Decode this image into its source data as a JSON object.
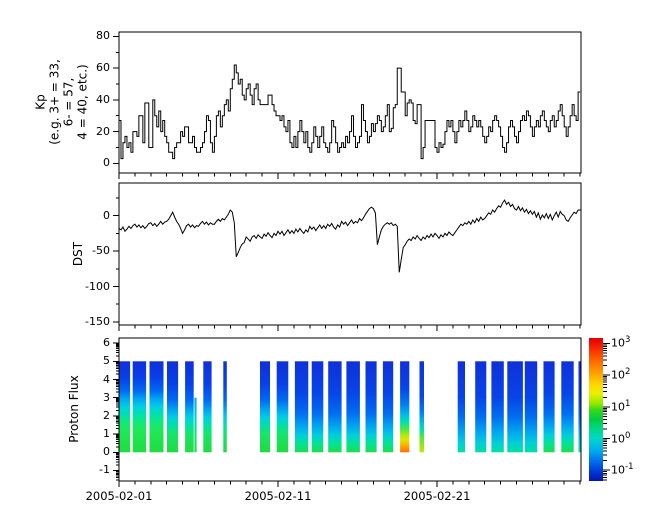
{
  "figure": {
    "background": "#ffffff",
    "line_color": "#000000",
    "x_axis": {
      "major_ticks": [
        {
          "day": 0,
          "label": "2005-02-01"
        },
        {
          "day": 10,
          "label": "2005-02-11"
        },
        {
          "day": 20,
          "label": "2005-02-21"
        }
      ],
      "minor_step_days": 1,
      "span_days": [
        0,
        29.06
      ]
    }
  },
  "chart_data": [
    {
      "id": "kp",
      "type": "line",
      "step": true,
      "ylabel": "Kp\n(e.g. 3+ = 33,\n6- = 57,\n4 = 40, etc.)",
      "ylim": [
        -6.1,
        82.8
      ],
      "yticks": [
        0,
        20,
        40,
        60,
        80
      ],
      "y_minor_step": 10,
      "x_start_day": 0,
      "x_step_days": 0.125,
      "values": [
        27,
        3,
        13,
        17,
        10,
        13,
        7,
        20,
        20,
        17,
        30,
        30,
        13,
        38,
        38,
        10,
        10,
        40,
        30,
        23,
        33,
        20,
        27,
        17,
        13,
        7,
        7,
        3,
        10,
        13,
        13,
        20,
        17,
        23,
        23,
        13,
        13,
        17,
        10,
        7,
        7,
        10,
        13,
        20,
        30,
        27,
        13,
        7,
        17,
        30,
        33,
        23,
        30,
        37,
        40,
        33,
        47,
        53,
        62,
        57,
        50,
        53,
        43,
        40,
        47,
        50,
        43,
        37,
        47,
        50,
        40,
        37,
        37,
        37,
        37,
        43,
        43,
        37,
        33,
        30,
        30,
        27,
        30,
        23,
        20,
        27,
        13,
        10,
        17,
        10,
        20,
        27,
        20,
        13,
        20,
        10,
        7,
        13,
        23,
        17,
        10,
        17,
        23,
        13,
        10,
        7,
        13,
        27,
        23,
        13,
        7,
        10,
        13,
        10,
        17,
        13,
        20,
        30,
        17,
        10,
        13,
        17,
        37,
        27,
        20,
        13,
        17,
        25,
        20,
        25,
        30,
        27,
        20,
        23,
        30,
        37,
        20,
        22,
        35,
        37,
        60,
        60,
        45,
        45,
        30,
        38,
        40,
        38,
        27,
        25,
        37,
        37,
        3,
        10,
        27,
        27,
        27,
        27,
        27,
        10,
        7,
        13,
        10,
        12,
        20,
        27,
        23,
        27,
        20,
        13,
        20,
        27,
        23,
        27,
        33,
        27,
        20,
        23,
        30,
        27,
        23,
        27,
        23,
        17,
        13,
        17,
        23,
        20,
        27,
        30,
        27,
        23,
        17,
        10,
        7,
        13,
        23,
        27,
        23,
        17,
        13,
        20,
        27,
        30,
        27,
        33,
        30,
        23,
        17,
        23,
        27,
        23,
        30,
        33,
        27,
        23,
        20,
        27,
        30,
        23,
        27,
        33,
        37,
        30,
        23,
        17,
        23,
        30,
        37,
        30,
        27,
        45
      ]
    },
    {
      "id": "dst",
      "type": "line",
      "step": false,
      "ylabel": "DST",
      "ylim": [
        -154.4,
        46.2
      ],
      "yticks": [
        0,
        -50,
        -100,
        -150
      ],
      "y_minor_step": 25,
      "x_start_day": 0,
      "x_step_days": 0.125,
      "values": [
        -18,
        -20,
        -16,
        -22,
        -19,
        -15,
        -18,
        -14,
        -12,
        -16,
        -13,
        -17,
        -14,
        -18,
        -15,
        -11,
        -10,
        -14,
        -11,
        -15,
        -12,
        -8,
        -12,
        -9,
        -8,
        -5,
        0,
        5,
        -2,
        -8,
        -12,
        -18,
        -25,
        -20,
        -14,
        -12,
        -16,
        -13,
        -17,
        -14,
        -15,
        -11,
        -8,
        -12,
        -9,
        -13,
        -10,
        -12,
        -12,
        -8,
        -5,
        -8,
        -4,
        -6,
        -2,
        2,
        8,
        5,
        -10,
        -58,
        -52,
        -45,
        -40,
        -38,
        -30,
        -33,
        -36,
        -30,
        -28,
        -32,
        -27,
        -30,
        -32,
        -26,
        -29,
        -24,
        -28,
        -31,
        -25,
        -28,
        -22,
        -26,
        -22,
        -28,
        -24,
        -20,
        -25,
        -21,
        -25,
        -19,
        -23,
        -18,
        -22,
        -25,
        -20,
        -23,
        -15,
        -19,
        -16,
        -21,
        -17,
        -13,
        -18,
        -14,
        -18,
        -12,
        -15,
        -11,
        -16,
        -19,
        -13,
        -16,
        -8,
        -12,
        -9,
        -14,
        -10,
        -6,
        -11,
        -8,
        -10,
        -4,
        -7,
        -3,
        2,
        6,
        10,
        12,
        10,
        4,
        -41,
        -30,
        -20,
        -15,
        -12,
        -10,
        -12,
        -10,
        -14,
        -12,
        -15,
        -80,
        -62,
        -45,
        -41,
        -36,
        -33,
        -35,
        -30,
        -33,
        -28,
        -32,
        -35,
        -30,
        -33,
        -28,
        -31,
        -26,
        -30,
        -25,
        -28,
        -32,
        -27,
        -30,
        -25,
        -28,
        -23,
        -26,
        -28,
        -24,
        -20,
        -16,
        -12,
        -14,
        -10,
        -12,
        -8,
        -12,
        -6,
        -10,
        -4,
        -8,
        -2,
        -6,
        -4,
        0,
        4,
        2,
        8,
        5,
        10,
        14,
        12,
        18,
        22,
        16,
        19,
        13,
        16,
        10,
        8,
        13,
        7,
        11,
        5,
        9,
        3,
        7,
        2,
        6,
        -2,
        4,
        -5,
        1,
        -3,
        3,
        -4,
        2,
        -6,
        0,
        5,
        -2,
        6,
        2,
        0,
        -6,
        -8,
        -3,
        1,
        5,
        3,
        8
      ]
    },
    {
      "id": "proton_flux",
      "type": "heatmap",
      "ylabel": "Proton Flux",
      "ylim": [
        -1.58,
        6.28
      ],
      "yticks": [
        6,
        5,
        4,
        3,
        2,
        1,
        0,
        -1
      ],
      "y_minor": "log",
      "bar_value_range": [
        0,
        5
      ],
      "bars": [
        {
          "d0": 0.02,
          "d1": 0.7,
          "g": "A",
          "vtop": 5
        },
        {
          "d0": 0.86,
          "d1": 1.7,
          "g": "A",
          "vtop": 5
        },
        {
          "d0": 1.92,
          "d1": 2.8,
          "g": "A",
          "vtop": 5
        },
        {
          "d0": 3.02,
          "d1": 3.72,
          "g": "B",
          "vtop": 5
        },
        {
          "d0": 4.16,
          "d1": 4.7,
          "g": "B",
          "vtop": 5
        },
        {
          "d0": 4.74,
          "d1": 4.88,
          "g": "B2",
          "vtop": 3
        },
        {
          "d0": 5.3,
          "d1": 5.82,
          "g": "B",
          "vtop": 5
        },
        {
          "d0": 6.56,
          "d1": 6.78,
          "g": "B",
          "vtop": 5
        },
        {
          "d0": 8.87,
          "d1": 9.5,
          "g": "B",
          "vtop": 5
        },
        {
          "d0": 9.92,
          "d1": 10.65,
          "g": "B",
          "vtop": 5
        },
        {
          "d0": 11.06,
          "d1": 11.9,
          "g": "D",
          "vtop": 5
        },
        {
          "d0": 12.12,
          "d1": 12.85,
          "g": "D",
          "vtop": 5
        },
        {
          "d0": 13.16,
          "d1": 14.0,
          "g": "D",
          "vtop": 5
        },
        {
          "d0": 14.3,
          "d1": 15.15,
          "g": "D",
          "vtop": 5
        },
        {
          "d0": 15.5,
          "d1": 16.2,
          "g": "D",
          "vtop": 5
        },
        {
          "d0": 16.6,
          "d1": 17.25,
          "g": "D",
          "vtop": 5
        },
        {
          "d0": 17.68,
          "d1": 18.26,
          "g": "O",
          "vtop": 5
        },
        {
          "d0": 18.9,
          "d1": 19.18,
          "g": "Y",
          "vtop": 5
        },
        {
          "d0": 21.3,
          "d1": 21.76,
          "g": "C",
          "vtop": 5
        },
        {
          "d0": 22.4,
          "d1": 23.1,
          "g": "C",
          "vtop": 5
        },
        {
          "d0": 23.42,
          "d1": 24.2,
          "g": "C",
          "vtop": 5
        },
        {
          "d0": 24.42,
          "d1": 25.4,
          "g": "C",
          "vtop": 5
        },
        {
          "d0": 25.52,
          "d1": 26.3,
          "g": "C",
          "vtop": 5
        },
        {
          "d0": 26.7,
          "d1": 27.4,
          "g": "D",
          "vtop": 5
        },
        {
          "d0": 27.82,
          "d1": 28.6,
          "g": "D",
          "vtop": 5
        },
        {
          "d0": 28.9,
          "d1": 29.06,
          "g": "C",
          "vtop": 5
        }
      ],
      "gradients": {
        "A": [
          [
            0,
            "#1030d8"
          ],
          [
            18,
            "#0840e8"
          ],
          [
            32,
            "#0068f0"
          ],
          [
            42,
            "#00a8f0"
          ],
          [
            50,
            "#00d0e0"
          ],
          [
            58,
            "#00e0b0"
          ],
          [
            66,
            "#10e880"
          ],
          [
            76,
            "#20e858"
          ],
          [
            100,
            "#20dc40"
          ]
        ],
        "B": [
          [
            0,
            "#1030d8"
          ],
          [
            25,
            "#0840e8"
          ],
          [
            42,
            "#0068f0"
          ],
          [
            54,
            "#00a8f0"
          ],
          [
            62,
            "#00d0e0"
          ],
          [
            70,
            "#00e0a8"
          ],
          [
            80,
            "#18e468"
          ],
          [
            100,
            "#20dc40"
          ]
        ],
        "B2": [
          [
            0,
            "#00a8f0"
          ],
          [
            40,
            "#00d8c8"
          ],
          [
            70,
            "#10e478"
          ],
          [
            100,
            "#20dc40"
          ]
        ],
        "C": [
          [
            0,
            "#1030d8"
          ],
          [
            40,
            "#0645e8"
          ],
          [
            62,
            "#0070f0"
          ],
          [
            78,
            "#00a8f0"
          ],
          [
            90,
            "#00d0d8"
          ],
          [
            100,
            "#00e0a0"
          ]
        ],
        "D": [
          [
            0,
            "#1030d8"
          ],
          [
            35,
            "#0645e8"
          ],
          [
            58,
            "#0070f0"
          ],
          [
            72,
            "#00a8f0"
          ],
          [
            82,
            "#00d0d8"
          ],
          [
            90,
            "#00e498"
          ],
          [
            100,
            "#20dc50"
          ]
        ],
        "O": [
          [
            0,
            "#1030d8"
          ],
          [
            30,
            "#0645e8"
          ],
          [
            48,
            "#0080f0"
          ],
          [
            58,
            "#00b8e8"
          ],
          [
            66,
            "#00e0b0"
          ],
          [
            74,
            "#40e850"
          ],
          [
            80,
            "#a0e818"
          ],
          [
            86,
            "#e0e800"
          ],
          [
            92,
            "#ffb000"
          ],
          [
            100,
            "#ff7000"
          ]
        ],
        "Y": [
          [
            0,
            "#1030d8"
          ],
          [
            38,
            "#0645e8"
          ],
          [
            56,
            "#0080f0"
          ],
          [
            68,
            "#00c0e0"
          ],
          [
            76,
            "#00e49c"
          ],
          [
            84,
            "#60e830"
          ],
          [
            100,
            "#c0e800"
          ]
        ]
      },
      "colorbar": {
        "exponents": [
          3,
          2,
          1,
          0,
          -1
        ],
        "e_top": 3.17,
        "e_bottom": -1.34,
        "stops": [
          [
            0,
            "#e00000"
          ],
          [
            3.8,
            "#f01000"
          ],
          [
            14.9,
            "#ff6000"
          ],
          [
            25.9,
            "#ffa800"
          ],
          [
            32.6,
            "#ffd800"
          ],
          [
            39.2,
            "#e8f000"
          ],
          [
            45.9,
            "#90e800"
          ],
          [
            50.3,
            "#38d818"
          ],
          [
            57,
            "#00cc44"
          ],
          [
            63.6,
            "#00d888"
          ],
          [
            70.3,
            "#00d8c8"
          ],
          [
            79.2,
            "#00a8f0"
          ],
          [
            88,
            "#0060e8"
          ],
          [
            94.7,
            "#0030d0"
          ],
          [
            100,
            "#0018a8"
          ]
        ]
      }
    }
  ]
}
